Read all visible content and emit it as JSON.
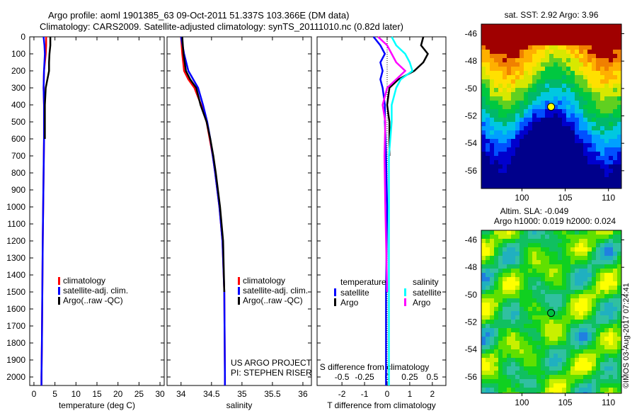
{
  "title": {
    "line1": "Argo profile: aoml 1901385_63 09-Oct-2011 51.337S 103.366E (DM data)",
    "line2": "Climatology: CARS2009. Satellite-adjusted climatology: synTS_20111010.nc (0.82d later)"
  },
  "colors": {
    "climatology": "#ff0000",
    "satellite": "#0000ff",
    "argo": "#000000",
    "sal_satellite": "#00ffff",
    "sal_argo": "#ff00ff"
  },
  "chart_data": [
    {
      "type": "line",
      "id": "temperature",
      "xlabel": "temperature (deg C)",
      "ylabel": "",
      "xlim": [
        -1,
        31
      ],
      "ylim": [
        2050,
        0
      ],
      "xticks": [
        "0",
        "5",
        "10",
        "15",
        "20",
        "25",
        "30"
      ],
      "xtick_values": [
        0,
        5,
        10,
        15,
        20,
        25,
        30
      ],
      "yticks": [
        "0",
        "100",
        "200",
        "300",
        "400",
        "500",
        "600",
        "700",
        "800",
        "900",
        "1000",
        "1100",
        "1200",
        "1300",
        "1400",
        "1500",
        "1600",
        "1700",
        "1800",
        "1900",
        "2000"
      ],
      "depth": [
        0,
        50,
        100,
        150,
        200,
        300,
        400,
        600,
        800,
        1000,
        1200,
        1500,
        1800,
        2000,
        2050
      ],
      "series": [
        {
          "name": "climatology",
          "color": "#ff0000",
          "values": [
            2.9,
            2.9,
            2.8,
            2.6,
            2.4,
            2.3,
            2.4,
            2.4,
            2.3,
            2.2,
            2.1,
            2.0,
            1.9,
            1.8,
            1.8
          ]
        },
        {
          "name": "satellite-adj. clim.",
          "color": "#0000ff",
          "values": [
            2.3,
            2.5,
            2.6,
            2.5,
            2.4,
            2.3,
            2.4,
            2.4,
            2.3,
            2.2,
            2.1,
            2.0,
            1.9,
            1.8,
            1.8
          ]
        },
        {
          "name": "Argo(..raw -QC)",
          "color": "#000000",
          "values": [
            3.9,
            3.9,
            3.7,
            3.6,
            3.6,
            2.8,
            2.6,
            2.6,
            null,
            null,
            null,
            null,
            null,
            null,
            null
          ]
        }
      ],
      "legend": [
        "climatology",
        "satellite-adj. clim.",
        "Argo(..raw -QC)"
      ]
    },
    {
      "type": "line",
      "id": "salinity",
      "xlabel": "salinity",
      "xlim": [
        33.77,
        36.14
      ],
      "ylim": [
        2050,
        0
      ],
      "xticks": [
        "34",
        "34.5",
        "35",
        "35.5",
        "36"
      ],
      "xtick_values": [
        34,
        34.5,
        35,
        35.5,
        36
      ],
      "depth": [
        0,
        100,
        200,
        250,
        300,
        400,
        500,
        600,
        700,
        800,
        1000,
        1200,
        1500,
        2000,
        2050
      ],
      "series": [
        {
          "name": "climatology",
          "color": "#ff0000",
          "values": [
            34.0,
            34.02,
            34.05,
            34.12,
            34.22,
            34.33,
            34.42,
            34.47,
            34.52,
            34.56,
            34.63,
            34.68,
            34.71,
            34.72,
            34.72
          ]
        },
        {
          "name": "satellite-adj. clim.",
          "color": "#0000ff",
          "values": [
            34.0,
            34.05,
            34.12,
            34.2,
            34.28,
            34.36,
            34.43,
            34.48,
            34.52,
            34.56,
            34.63,
            34.68,
            34.71,
            34.72,
            34.72
          ]
        },
        {
          "name": "Argo(..raw -QC)",
          "color": "#000000",
          "values": [
            34.02,
            34.04,
            34.08,
            34.15,
            34.25,
            34.32,
            34.42,
            34.48,
            34.53,
            34.57,
            34.64,
            34.69,
            34.71,
            null,
            null
          ]
        }
      ],
      "legend": [
        "climatology",
        "satellite-adj. clim.",
        "Argo(..raw -QC)"
      ],
      "annotation": [
        "US ARGO PROJECT",
        "PI: STEPHEN RISER"
      ]
    },
    {
      "type": "line",
      "id": "differences",
      "xlabel": "T difference from climatology",
      "top_xlabel": "S difference from climatology",
      "xlim": [
        -3.1,
        2.6
      ],
      "ylim": [
        2050,
        0
      ],
      "xticks": [
        "-2",
        "-1",
        "0",
        "1",
        "2"
      ],
      "xtick_values": [
        -2,
        -1,
        0,
        1,
        2
      ],
      "top_xticks": [
        "-0.5",
        "-0.25",
        "0",
        "0.25",
        "0.5"
      ],
      "top_xtick_values": [
        -0.5,
        -0.25,
        0,
        0.25,
        0.5
      ],
      "depth": [
        0,
        50,
        100,
        150,
        200,
        250,
        300,
        400,
        500,
        700,
        1000,
        1500,
        2000,
        2050
      ],
      "series": [
        {
          "name": "temperature satellite",
          "color": "#0000ff",
          "values": [
            -0.6,
            -0.3,
            -0.1,
            -0.3,
            -0.2,
            -0.3,
            -0.2,
            -0.1,
            -0.1,
            -0.05,
            0,
            -0.05,
            -0.05,
            -0.05
          ]
        },
        {
          "name": "temperature Argo",
          "color": "#000000",
          "values": [
            1.6,
            1.5,
            1.8,
            1.6,
            1.2,
            0.5,
            0.1,
            0.0,
            0.1,
            0.1,
            null,
            null,
            null,
            null
          ]
        },
        {
          "name": "salinity satellite",
          "color": "#00ffff",
          "values": [
            0.05,
            0.1,
            0.2,
            0.25,
            0.28,
            0.15,
            0.1,
            0.05,
            0.05,
            0.02,
            0.02,
            0.02,
            0.02,
            0.02
          ]
        },
        {
          "name": "salinity Argo",
          "color": "#ff00ff",
          "values": [
            -0.1,
            0.0,
            0.05,
            0.1,
            0.2,
            0.1,
            0.0,
            -0.05,
            -0.02,
            -0.03,
            -0.02,
            0.0,
            null,
            null
          ]
        }
      ],
      "legend_temperature": {
        "title": "temperature",
        "items": [
          "satellite",
          "Argo"
        ]
      },
      "legend_salinity": {
        "title": "salinity",
        "items": [
          "satellite",
          "Argo"
        ]
      }
    },
    {
      "type": "heatmap",
      "id": "sst_map",
      "title": "sat. SST: 2.92 Argo: 3.96",
      "xlim": [
        95.3,
        111.5
      ],
      "ylim": [
        -57.3,
        -45.3
      ],
      "xticks": [
        "100",
        "105",
        "110"
      ],
      "xtick_values": [
        100,
        105,
        110
      ],
      "yticks": [
        "-46",
        "-48",
        "-50",
        "-52",
        "-54",
        "-56"
      ],
      "ytick_values": [
        -46,
        -48,
        -50,
        -52,
        -54,
        -56
      ],
      "argo_position": {
        "lon": 103.366,
        "lat": -51.337
      }
    },
    {
      "type": "heatmap",
      "id": "sla_map",
      "title": "Altim. SLA: -0.049",
      "subtitle": "Argo h1000: 0.019 h2000: 0.024",
      "xlim": [
        95.3,
        111.5
      ],
      "ylim": [
        -57.2,
        -45.3
      ],
      "xticks": [
        "100",
        "105",
        "110"
      ],
      "xtick_values": [
        100,
        105,
        110
      ],
      "yticks": [
        "-46",
        "-48",
        "-50",
        "-52",
        "-54",
        "-56"
      ],
      "ytick_values": [
        -46,
        -48,
        -50,
        -52,
        -54,
        -56
      ],
      "argo_position": {
        "lon": 103.366,
        "lat": -51.337
      }
    }
  ],
  "credit": "©IMOS 03-Aug-2017 07:24:41"
}
